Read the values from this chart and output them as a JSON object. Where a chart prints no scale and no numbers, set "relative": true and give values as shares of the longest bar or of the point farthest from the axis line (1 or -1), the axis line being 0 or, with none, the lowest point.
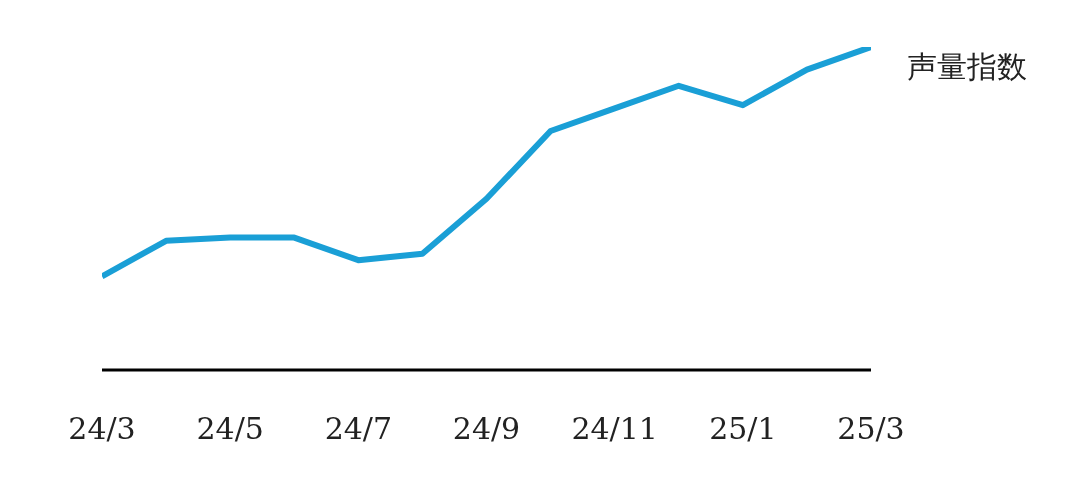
{
  "chart_data": {
    "type": "line",
    "relative": true,
    "categories": [
      "24/3",
      null,
      "24/5",
      null,
      "24/7",
      null,
      "24/9",
      null,
      "24/11",
      null,
      "25/1",
      null,
      "25/3"
    ],
    "series": [
      {
        "name": "声量指数",
        "color": "#1a9fd6",
        "values": [
          0.29,
          0.4,
          0.41,
          0.41,
          0.34,
          0.36,
          0.53,
          0.74,
          0.81,
          0.88,
          0.82,
          0.93,
          1
        ]
      }
    ],
    "grid": false,
    "legend": false,
    "marker": "none",
    "line_style": "solid"
  }
}
